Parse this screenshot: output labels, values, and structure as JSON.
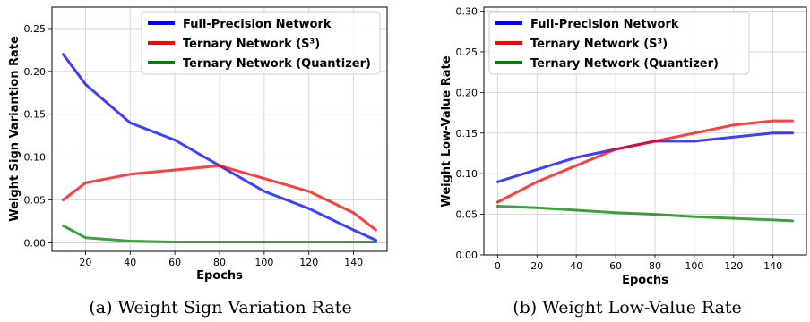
{
  "figure": {
    "legend_entries": [
      {
        "label": "Full-Precision Network",
        "color": "#0000ff"
      },
      {
        "label": "Ternary Network (S³)",
        "color": "#ff0000"
      },
      {
        "label": "Ternary Network (Quantizer)",
        "color": "#008000"
      }
    ]
  },
  "chart_data": [
    {
      "type": "line",
      "caption": "(a) Weight Sign Variation Rate",
      "xlabel": "Epochs",
      "ylabel": "Weight Sign Variantion Rate",
      "xlim": [
        5,
        155
      ],
      "ylim": [
        -0.01,
        0.275
      ],
      "xticks": [
        20,
        40,
        60,
        80,
        100,
        120,
        140
      ],
      "yticks": [
        0.0,
        0.05,
        0.1,
        0.15,
        0.2,
        0.25
      ],
      "ytick_format": 2,
      "grid": true,
      "legend_position": "top-right",
      "series": [
        {
          "group": "Full-Precision Network",
          "color": "#0000ff",
          "representative": true,
          "x": [
            10,
            20,
            40,
            60,
            80,
            100,
            120,
            140,
            150
          ],
          "y": [
            0.22,
            0.185,
            0.14,
            0.12,
            0.09,
            0.06,
            0.04,
            0.015,
            0.003
          ]
        },
        {
          "group": "Ternary Network (S³)",
          "color": "#ff0000",
          "representative": true,
          "x": [
            10,
            20,
            40,
            60,
            80,
            100,
            120,
            140,
            150
          ],
          "y": [
            0.05,
            0.07,
            0.08,
            0.085,
            0.09,
            0.075,
            0.06,
            0.035,
            0.015
          ]
        },
        {
          "group": "Ternary Network (Quantizer)",
          "color": "#008000",
          "representative": true,
          "x": [
            10,
            20,
            40,
            60,
            80,
            100,
            120,
            140,
            150
          ],
          "y": [
            0.02,
            0.006,
            0.002,
            0.001,
            0.001,
            0.001,
            0.001,
            0.001,
            0.001
          ]
        }
      ]
    },
    {
      "type": "line",
      "caption": "(b) Weight Low-Value Rate",
      "xlabel": "Epochs",
      "ylabel": "Weight Low-Value Rate",
      "xlim": [
        -7,
        157
      ],
      "ylim": [
        0.0,
        0.305
      ],
      "xticks": [
        0,
        20,
        40,
        60,
        80,
        100,
        120,
        140
      ],
      "yticks": [
        0.0,
        0.05,
        0.1,
        0.15,
        0.2,
        0.25,
        0.3
      ],
      "ytick_format": 2,
      "grid": true,
      "legend_position": "top-left",
      "series": [
        {
          "group": "Full-Precision Network",
          "color": "#0000ff",
          "representative": true,
          "x": [
            0,
            20,
            40,
            60,
            80,
            100,
            120,
            140,
            150
          ],
          "y": [
            0.09,
            0.105,
            0.12,
            0.13,
            0.14,
            0.14,
            0.145,
            0.15,
            0.15
          ]
        },
        {
          "group": "Ternary Network (S³)",
          "color": "#ff0000",
          "representative": true,
          "x": [
            0,
            20,
            40,
            60,
            80,
            100,
            120,
            140,
            150
          ],
          "y": [
            0.065,
            0.09,
            0.11,
            0.13,
            0.14,
            0.15,
            0.16,
            0.165,
            0.165
          ]
        },
        {
          "group": "Ternary Network (Quantizer)",
          "color": "#008000",
          "representative": true,
          "x": [
            0,
            20,
            40,
            60,
            80,
            100,
            120,
            140,
            150
          ],
          "y": [
            0.06,
            0.058,
            0.055,
            0.052,
            0.05,
            0.047,
            0.045,
            0.043,
            0.042
          ]
        }
      ]
    }
  ]
}
